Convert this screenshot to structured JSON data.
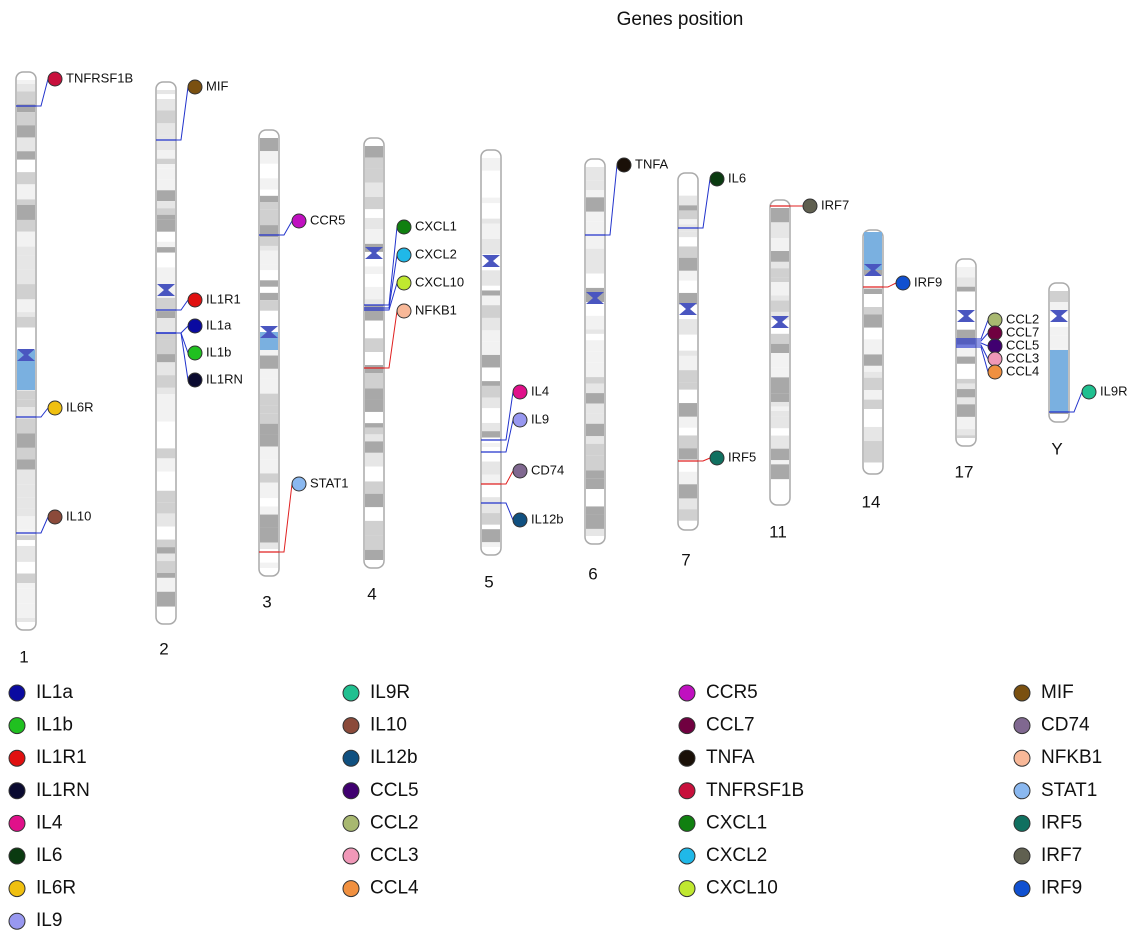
{
  "title": "Genes position",
  "chromosomes": [
    "1",
    "2",
    "3",
    "4",
    "5",
    "6",
    "7",
    "11",
    "14",
    "17",
    "Y"
  ],
  "genes": [
    {
      "label": "TNFRSF1B",
      "color": "#c8103c"
    },
    {
      "label": "IL6R",
      "color": "#f0c010"
    },
    {
      "label": "IL10",
      "color": "#8b4a3a"
    },
    {
      "label": "MIF",
      "color": "#7a5010"
    },
    {
      "label": "IL1R1",
      "color": "#e01010"
    },
    {
      "label": "IL1a",
      "color": "#0a0aa0"
    },
    {
      "label": "IL1b",
      "color": "#20c020"
    },
    {
      "label": "IL1RN",
      "color": "#0a0a30"
    },
    {
      "label": "CCR5",
      "color": "#c010c0"
    },
    {
      "label": "STAT1",
      "color": "#8ab8f0"
    },
    {
      "label": "CXCL1",
      "color": "#108010"
    },
    {
      "label": "CXCL2",
      "color": "#20b8e8"
    },
    {
      "label": "CXCL10",
      "color": "#c0e830"
    },
    {
      "label": "NFKB1",
      "color": "#f8b898"
    },
    {
      "label": "IL4",
      "color": "#e0108a"
    },
    {
      "label": "IL9",
      "color": "#9898f0"
    },
    {
      "label": "CD74",
      "color": "#806890"
    },
    {
      "label": "IL12b",
      "color": "#105080"
    },
    {
      "label": "TNFA",
      "color": "#1a1008"
    },
    {
      "label": "IL6",
      "color": "#0a3a10"
    },
    {
      "label": "IRF5",
      "color": "#107060"
    },
    {
      "label": "IRF7",
      "color": "#606050"
    },
    {
      "label": "IRF9",
      "color": "#1050d0"
    },
    {
      "label": "CCL2",
      "color": "#a8b870"
    },
    {
      "label": "CCL7",
      "color": "#700040"
    },
    {
      "label": "CCL5",
      "color": "#400070"
    },
    {
      "label": "CCL3",
      "color": "#f098b8"
    },
    {
      "label": "CCL4",
      "color": "#f09040"
    },
    {
      "label": "IL9R",
      "color": "#20c090"
    }
  ],
  "legend": [
    {
      "label": "IL1a",
      "color": "#0a0aa0"
    },
    {
      "label": "IL1b",
      "color": "#20c020"
    },
    {
      "label": "IL1R1",
      "color": "#e01010"
    },
    {
      "label": "IL1RN",
      "color": "#0a0a30"
    },
    {
      "label": "IL4",
      "color": "#e0108a"
    },
    {
      "label": "IL6",
      "color": "#0a3a10"
    },
    {
      "label": "IL6R",
      "color": "#f0c010"
    },
    {
      "label": "IL9",
      "color": "#9898f0"
    },
    {
      "label": "IL9R",
      "color": "#20c090"
    },
    {
      "label": "IL10",
      "color": "#8b4a3a"
    },
    {
      "label": "IL12b",
      "color": "#105080"
    },
    {
      "label": "CCL5",
      "color": "#400070"
    },
    {
      "label": "CCL2",
      "color": "#a8b870"
    },
    {
      "label": "CCL3",
      "color": "#f098b8"
    },
    {
      "label": "CCL4",
      "color": "#f09040"
    },
    {
      "label": "CCR5",
      "color": "#c010c0"
    },
    {
      "label": "CCL7",
      "color": "#700040"
    },
    {
      "label": "TNFA",
      "color": "#1a1008"
    },
    {
      "label": "TNFRSF1B",
      "color": "#c8103c"
    },
    {
      "label": "CXCL1",
      "color": "#108010"
    },
    {
      "label": "CXCL2",
      "color": "#20b8e8"
    },
    {
      "label": "CXCL10",
      "color": "#c0e830"
    },
    {
      "label": "MIF",
      "color": "#7a5010"
    },
    {
      "label": "CD74",
      "color": "#806890"
    },
    {
      "label": "NFKB1",
      "color": "#f8b898"
    },
    {
      "label": "STAT1",
      "color": "#8ab8f0"
    },
    {
      "label": "IRF5",
      "color": "#107060"
    },
    {
      "label": "IRF7",
      "color": "#606050"
    },
    {
      "label": "IRF9",
      "color": "#1050d0"
    }
  ]
}
